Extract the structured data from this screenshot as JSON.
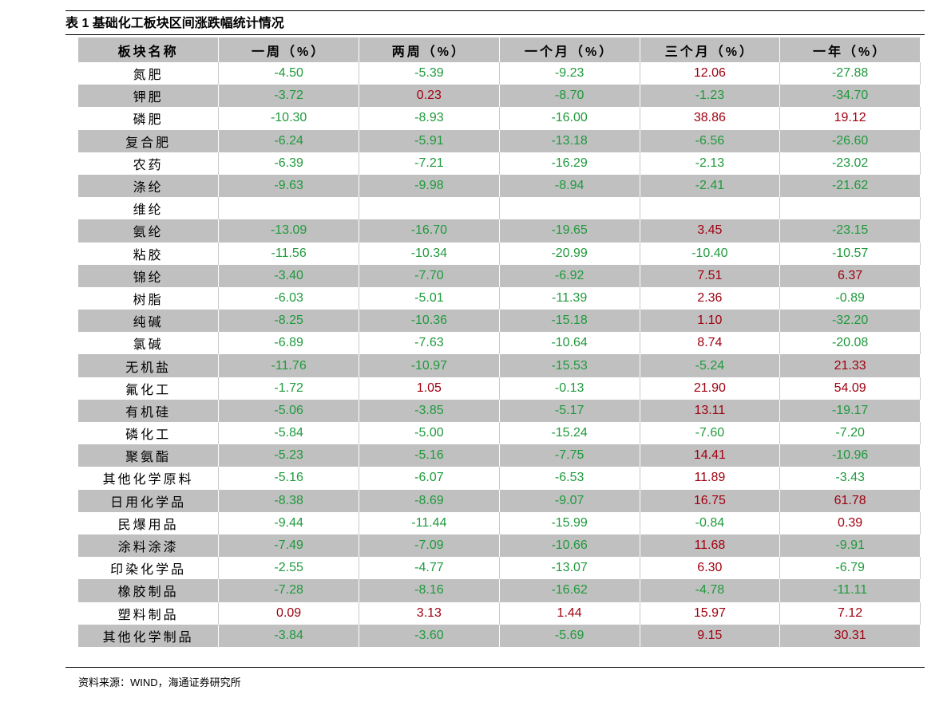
{
  "header": {
    "title": "表 1 基础化工板块区间涨跌幅统计情况"
  },
  "table": {
    "columns": [
      "板块名称",
      "一周（%）",
      "两周（%）",
      "一个月（%）",
      "三个月（%）",
      "一年（%）"
    ],
    "rows": [
      [
        "氮肥",
        "-4.50",
        "-5.39",
        "-9.23",
        "12.06",
        "-27.88"
      ],
      [
        "钾肥",
        "-3.72",
        "0.23",
        "-8.70",
        "-1.23",
        "-34.70"
      ],
      [
        "磷肥",
        "-10.30",
        "-8.93",
        "-16.00",
        "38.86",
        "19.12"
      ],
      [
        "复合肥",
        "-6.24",
        "-5.91",
        "-13.18",
        "-6.56",
        "-26.60"
      ],
      [
        "农药",
        "-6.39",
        "-7.21",
        "-16.29",
        "-2.13",
        "-23.02"
      ],
      [
        "涤纶",
        "-9.63",
        "-9.98",
        "-8.94",
        "-2.41",
        "-21.62"
      ],
      [
        "维纶",
        null,
        null,
        null,
        null,
        null
      ],
      [
        "氨纶",
        "-13.09",
        "-16.70",
        "-19.65",
        "3.45",
        "-23.15"
      ],
      [
        "粘胶",
        "-11.56",
        "-10.34",
        "-20.99",
        "-10.40",
        "-10.57"
      ],
      [
        "锦纶",
        "-3.40",
        "-7.70",
        "-6.92",
        "7.51",
        "6.37"
      ],
      [
        "树脂",
        "-6.03",
        "-5.01",
        "-11.39",
        "2.36",
        "-0.89"
      ],
      [
        "纯碱",
        "-8.25",
        "-10.36",
        "-15.18",
        "1.10",
        "-32.20"
      ],
      [
        "氯碱",
        "-6.89",
        "-7.63",
        "-10.64",
        "8.74",
        "-20.08"
      ],
      [
        "无机盐",
        "-11.76",
        "-10.97",
        "-15.53",
        "-5.24",
        "21.33"
      ],
      [
        "氟化工",
        "-1.72",
        "1.05",
        "-0.13",
        "21.90",
        "54.09"
      ],
      [
        "有机硅",
        "-5.06",
        "-3.85",
        "-5.17",
        "13.11",
        "-19.17"
      ],
      [
        "磷化工",
        "-5.84",
        "-5.00",
        "-15.24",
        "-7.60",
        "-7.20"
      ],
      [
        "聚氨酯",
        "-5.23",
        "-5.16",
        "-7.75",
        "14.41",
        "-10.96"
      ],
      [
        "其他化学原料",
        "-5.16",
        "-6.07",
        "-6.53",
        "11.89",
        "-3.43"
      ],
      [
        "日用化学品",
        "-8.38",
        "-8.69",
        "-9.07",
        "16.75",
        "61.78"
      ],
      [
        "民爆用品",
        "-9.44",
        "-11.44",
        "-15.99",
        "-0.84",
        "0.39"
      ],
      [
        "涂料涂漆",
        "-7.49",
        "-7.09",
        "-10.66",
        "11.68",
        "-9.91"
      ],
      [
        "印染化学品",
        "-2.55",
        "-4.77",
        "-13.07",
        "6.30",
        "-6.79"
      ],
      [
        "橡胶制品",
        "-7.28",
        "-8.16",
        "-16.62",
        "-4.78",
        "-11.11"
      ],
      [
        "塑料制品",
        "0.09",
        "3.13",
        "1.44",
        "15.97",
        "7.12"
      ],
      [
        "其他化学制品",
        "-3.84",
        "-3.60",
        "-5.69",
        "9.15",
        "30.31"
      ]
    ]
  },
  "source": "资料来源：WIND，海通证券研究所"
}
